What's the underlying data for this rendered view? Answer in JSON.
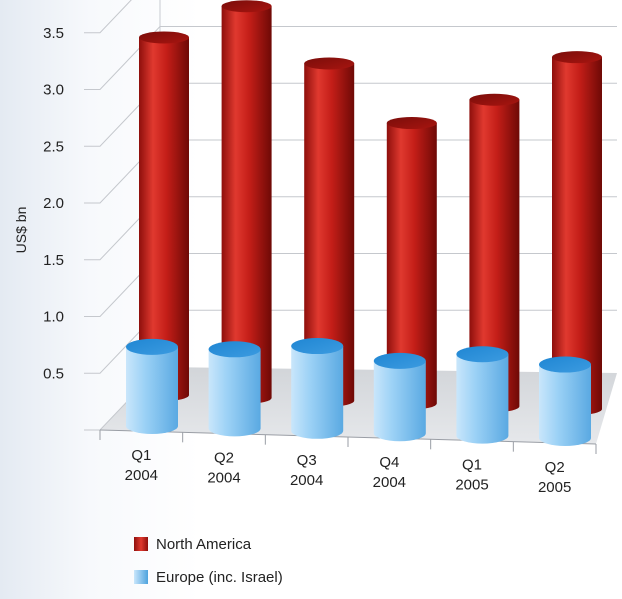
{
  "chart_data": {
    "type": "bar",
    "style": "3d-cylinder",
    "ylabel": "US$ bn",
    "ylim": [
      0,
      3.5
    ],
    "yticks": [
      "0.5",
      "1.0",
      "1.5",
      "2.0",
      "2.5",
      "3.0",
      "3.5"
    ],
    "grid": true,
    "categories": [
      {
        "line1": "Q1",
        "line2": "2004"
      },
      {
        "line1": "Q2",
        "line2": "2004"
      },
      {
        "line1": "Q3",
        "line2": "2004"
      },
      {
        "line1": "Q4",
        "line2": "2004"
      },
      {
        "line1": "Q1",
        "line2": "2005"
      },
      {
        "line1": "Q2",
        "line2": "2005"
      }
    ],
    "series": [
      {
        "name": "North America",
        "color": "#c8201a",
        "values": [
          3.15,
          3.45,
          2.97,
          2.47,
          2.7,
          3.1
        ]
      },
      {
        "name": "Europe (inc. Israel)",
        "color": "#4ea3de",
        "values": [
          0.7,
          0.7,
          0.75,
          0.64,
          0.72,
          0.65
        ]
      }
    ],
    "legend_position": "bottom-left"
  }
}
